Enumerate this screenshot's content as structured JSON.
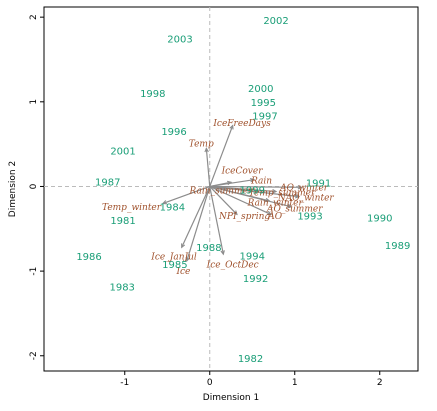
{
  "chart_data": {
    "type": "scatter",
    "title": "",
    "xlabel": "Dimension 1",
    "ylabel": "Dimension 2",
    "xlim": [
      -1.95,
      2.45
    ],
    "ylim": [
      -2.18,
      2.12
    ],
    "xticks": [
      -1,
      0,
      1,
      2
    ],
    "yticks": [
      -2,
      -1,
      0,
      1,
      2
    ],
    "reference_lines": {
      "x": 0,
      "y": 0
    },
    "grid": false,
    "colors": {
      "sites": "#1a9e77",
      "variables": "#a0522d",
      "arrows": "#8c8c8c"
    },
    "sites": [
      {
        "label": "2002",
        "x": 0.78,
        "y": 1.96
      },
      {
        "label": "2003",
        "x": -0.35,
        "y": 1.74
      },
      {
        "label": "1998",
        "x": -0.67,
        "y": 1.1
      },
      {
        "label": "2000",
        "x": 0.6,
        "y": 1.16
      },
      {
        "label": "1995",
        "x": 0.63,
        "y": 0.99
      },
      {
        "label": "1997",
        "x": 0.65,
        "y": 0.83
      },
      {
        "label": "1996",
        "x": -0.42,
        "y": 0.65
      },
      {
        "label": "2001",
        "x": -1.02,
        "y": 0.42
      },
      {
        "label": "1987",
        "x": -1.2,
        "y": 0.05
      },
      {
        "label": "1999",
        "x": 0.5,
        "y": -0.04
      },
      {
        "label": "1991",
        "x": 1.28,
        "y": 0.04
      },
      {
        "label": "1984",
        "x": -0.44,
        "y": -0.24
      },
      {
        "label": "1981",
        "x": -1.02,
        "y": -0.4
      },
      {
        "label": "1993",
        "x": 1.18,
        "y": -0.35
      },
      {
        "label": "1990",
        "x": 2.0,
        "y": -0.37
      },
      {
        "label": "1989",
        "x": 2.21,
        "y": -0.7
      },
      {
        "label": "1986",
        "x": -1.42,
        "y": -0.83
      },
      {
        "label": "1988",
        "x": -0.01,
        "y": -0.72
      },
      {
        "label": "1994",
        "x": 0.5,
        "y": -0.82
      },
      {
        "label": "1985",
        "x": -0.41,
        "y": -0.92
      },
      {
        "label": "1992",
        "x": 0.54,
        "y": -1.09
      },
      {
        "label": "1983",
        "x": -1.03,
        "y": -1.19
      },
      {
        "label": "1982",
        "x": 0.48,
        "y": -2.03
      }
    ],
    "variables": [
      {
        "label": "IceFreeDays",
        "x": 0.27,
        "y": 0.72,
        "lx": 0.38,
        "ly": 0.75
      },
      {
        "label": "Temp",
        "x": -0.04,
        "y": 0.45,
        "lx": -0.1,
        "ly": 0.51
      },
      {
        "label": "IceCover",
        "x": 0.25,
        "y": 0.05,
        "lx": 0.38,
        "ly": 0.19
      },
      {
        "label": "Rain",
        "x": 0.52,
        "y": 0.08,
        "lx": 0.61,
        "ly": 0.07
      },
      {
        "label": "Rain_summer",
        "x": 0.2,
        "y": -0.03,
        "lx": 0.13,
        "ly": -0.05
      },
      {
        "label": "AO_winter",
        "x": 1.08,
        "y": -0.01,
        "lx": 1.11,
        "ly": -0.01
      },
      {
        "label": "Temp_summer",
        "x": 0.78,
        "y": -0.06,
        "lx": 0.85,
        "ly": -0.07
      },
      {
        "label": "NAO_winter",
        "x": 1.05,
        "y": -0.12,
        "lx": 1.13,
        "ly": -0.13
      },
      {
        "label": "Rain_winter",
        "x": 0.7,
        "y": -0.17,
        "lx": 0.77,
        "ly": -0.19
      },
      {
        "label": "AO_summer",
        "x": 0.96,
        "y": -0.24,
        "lx": 1.0,
        "ly": -0.26
      },
      {
        "label": "NPI_spring",
        "x": 0.32,
        "y": -0.33,
        "lx": 0.41,
        "ly": -0.35
      },
      {
        "label": "AO",
        "x": 0.72,
        "y": -0.33,
        "lx": 0.77,
        "ly": -0.35
      },
      {
        "label": "Temp_winter",
        "x": -0.55,
        "y": -0.2,
        "lx": -0.92,
        "ly": -0.24
      },
      {
        "label": "Ice_JanJul",
        "x": -0.33,
        "y": -0.72,
        "lx": -0.42,
        "ly": -0.83
      },
      {
        "label": "Ice",
        "x": -0.27,
        "y": -0.88,
        "lx": -0.31,
        "ly": -1.0
      },
      {
        "label": "Ice_OctDec",
        "x": 0.16,
        "y": -0.8,
        "lx": 0.27,
        "ly": -0.92
      }
    ]
  }
}
